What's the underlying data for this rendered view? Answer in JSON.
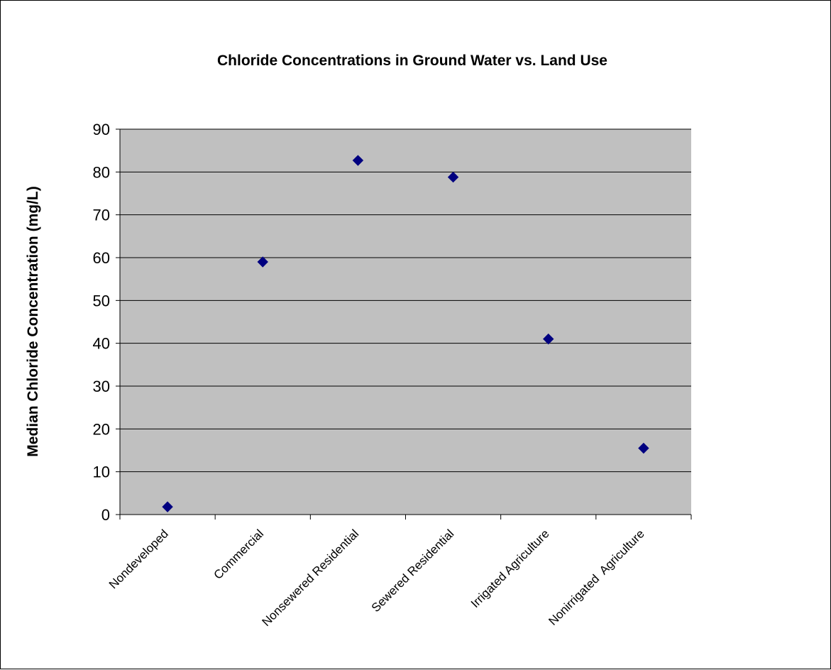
{
  "chart_data": {
    "type": "scatter",
    "title": "Chloride Concentrations in Ground Water vs. Land Use",
    "xlabel": "",
    "ylabel": "Median Chloride Concentration (mg/L)",
    "categories": [
      "Nondeveloped",
      "Commercial",
      "Nonsewered Residential",
      "Sewered Residential",
      "Irrigated Agriculture",
      "Nonirrigated  Agriculture"
    ],
    "values": [
      1.8,
      59,
      82.7,
      78.8,
      41,
      15.5
    ],
    "ylim": [
      0,
      90
    ],
    "yticks": [
      0,
      10,
      20,
      30,
      40,
      50,
      60,
      70,
      80,
      90
    ],
    "grid": true,
    "legend": "none",
    "plot_background": "#C0C0C0",
    "marker_color": "#000080",
    "marker": "diamond"
  }
}
